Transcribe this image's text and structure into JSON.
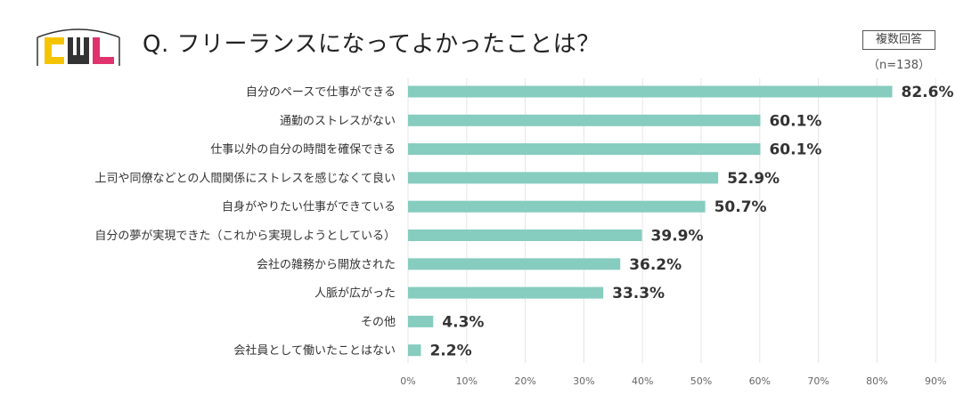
{
  "logo": {
    "letters": "CWL",
    "colors": {
      "c": "#F5C400",
      "w": "#333333",
      "l": "#E0336E"
    }
  },
  "title": "Q. フリーランスになってよかったことは？",
  "badge": "複数回答",
  "sample": "（n=138）",
  "colors": {
    "bar": "#86CCBF",
    "grid": "#E6E6E6"
  },
  "chart_data": {
    "type": "bar",
    "orientation": "horizontal",
    "categories": [
      "自分のペースで仕事ができる",
      "通勤のストレスがない",
      "仕事以外の自分の時間を確保できる",
      "上司や同僚などとの人間関係にストレスを感じなくて良い",
      "自身がやりたい仕事ができている",
      "自分の夢が実現できた（これから実現しようとしている）",
      "会社の雑務から開放された",
      "人脈が広がった",
      "その他",
      "会社員として働いたことはない"
    ],
    "values": [
      82.6,
      60.1,
      60.1,
      52.9,
      50.7,
      39.9,
      36.2,
      33.3,
      4.3,
      2.2
    ],
    "value_labels": [
      "82.6%",
      "60.1%",
      "60.1%",
      "52.9%",
      "50.7%",
      "39.9%",
      "36.2%",
      "33.3%",
      "4.3%",
      "2.2%"
    ],
    "xticks": [
      "0%",
      "10%",
      "20%",
      "30%",
      "40%",
      "50%",
      "60%",
      "70%",
      "80%",
      "90%"
    ],
    "xlim": [
      0,
      90
    ],
    "grid": true,
    "unit": "%"
  }
}
